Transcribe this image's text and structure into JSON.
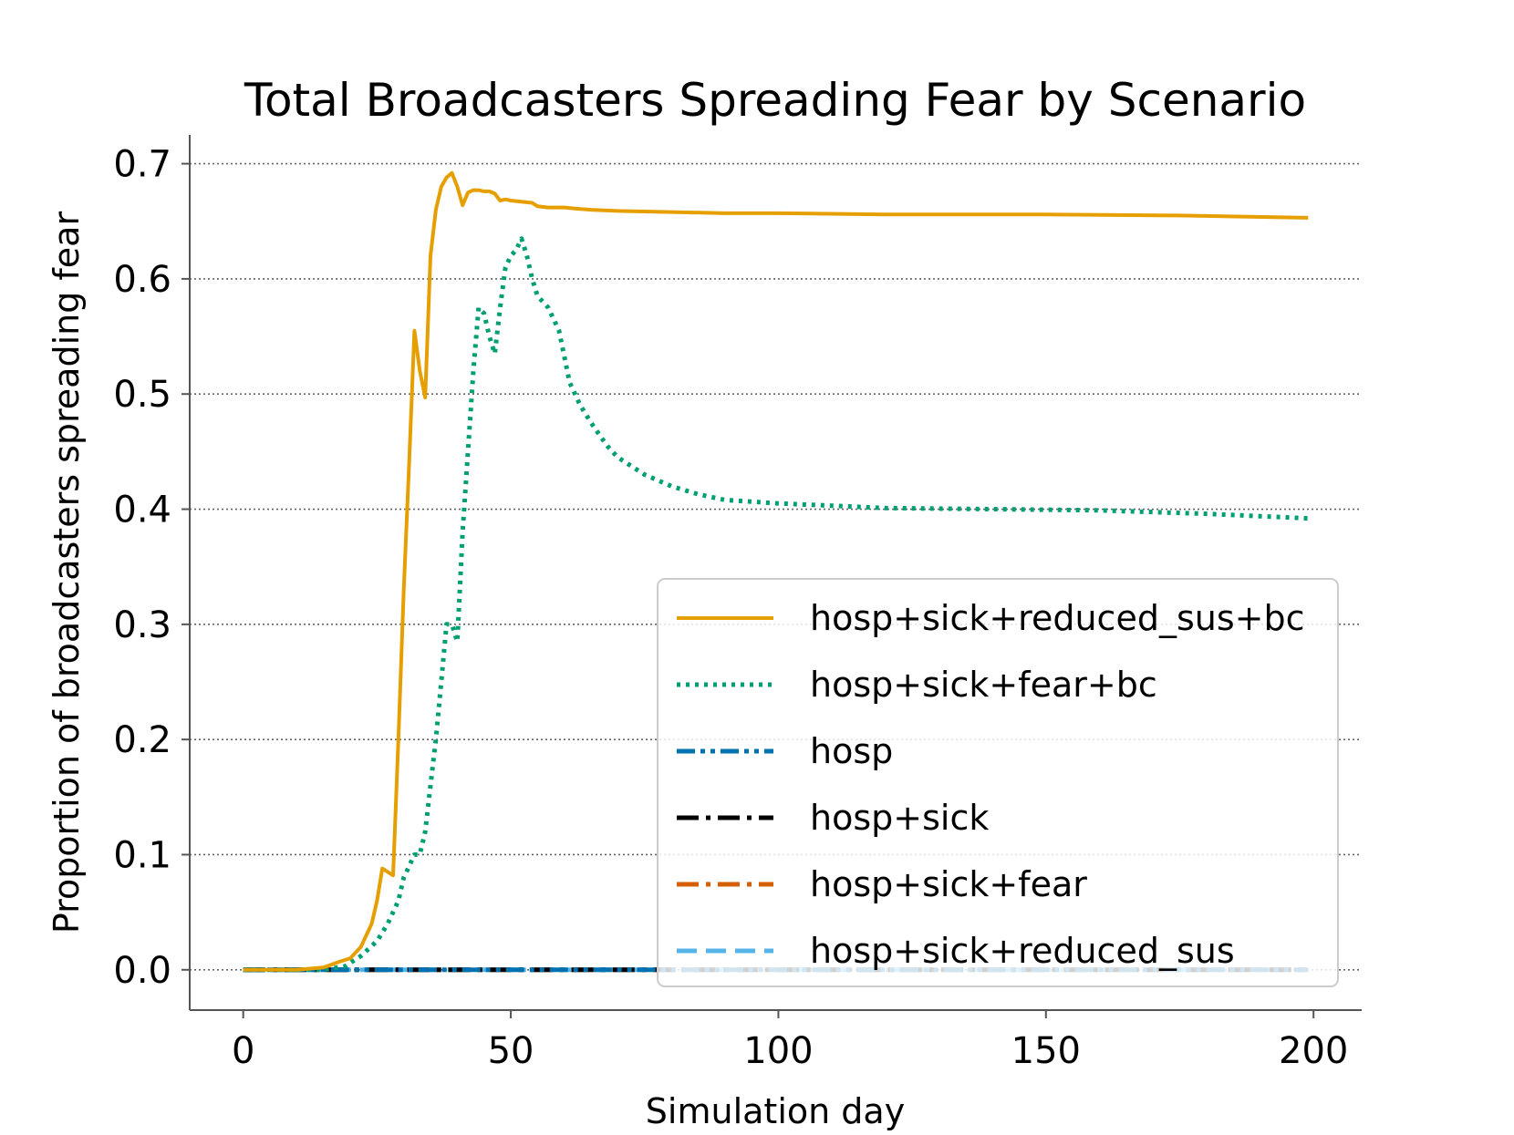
{
  "chart_data": {
    "type": "line",
    "title": "Total Broadcasters Spreading Fear by Scenario",
    "xlabel": "Simulation day",
    "ylabel": "Proportion of broadcasters spreading fear",
    "xlim": [
      -10,
      209
    ],
    "ylim": [
      -0.035,
      0.725
    ],
    "xticks": [
      0,
      50,
      100,
      150,
      200
    ],
    "yticks": [
      0.0,
      0.1,
      0.2,
      0.3,
      0.4,
      0.5,
      0.6,
      0.7
    ],
    "xtick_labels": [
      "0",
      "50",
      "100",
      "150",
      "200"
    ],
    "ytick_labels": [
      "0.0",
      "0.1",
      "0.2",
      "0.3",
      "0.4",
      "0.5",
      "0.6",
      "0.7"
    ],
    "grid": "horizontal dotted",
    "legend_position": "lower-right",
    "series": [
      {
        "name": "hosp+sick+reduced_sus+bc",
        "color": "#E69F00",
        "style": "solid",
        "x": [
          0,
          10,
          15,
          18,
          20,
          22,
          24,
          25,
          26,
          27,
          28,
          29,
          30,
          31,
          32,
          33,
          34,
          35,
          36,
          37,
          38,
          39,
          40,
          41,
          42,
          43,
          44,
          45,
          46,
          47,
          48,
          49,
          50,
          52,
          54,
          55,
          57,
          60,
          62,
          65,
          70,
          80,
          90,
          100,
          120,
          150,
          175,
          199
        ],
        "y": [
          0,
          0,
          0.002,
          0.007,
          0.01,
          0.02,
          0.04,
          0.06,
          0.088,
          0.085,
          0.082,
          0.2,
          0.33,
          0.44,
          0.555,
          0.52,
          0.497,
          0.62,
          0.66,
          0.68,
          0.688,
          0.692,
          0.68,
          0.664,
          0.675,
          0.677,
          0.677,
          0.676,
          0.676,
          0.674,
          0.668,
          0.669,
          0.668,
          0.667,
          0.666,
          0.663,
          0.662,
          0.662,
          0.661,
          0.66,
          0.659,
          0.658,
          0.657,
          0.657,
          0.656,
          0.656,
          0.655,
          0.653
        ]
      },
      {
        "name": "hosp+sick+fear+bc",
        "color": "#009E73",
        "style": "dotted",
        "x": [
          0,
          15,
          19,
          22,
          25,
          27,
          29,
          30,
          31,
          32,
          33,
          34,
          35,
          36,
          37,
          38,
          39,
          40,
          41,
          42,
          43,
          44,
          45,
          46,
          47,
          48,
          49,
          50,
          51,
          52,
          53,
          54,
          55,
          57,
          59,
          61,
          63,
          65,
          68,
          70,
          75,
          80,
          85,
          90,
          100,
          110,
          120,
          140,
          160,
          180,
          199
        ],
        "y": [
          0,
          0,
          0.003,
          0.012,
          0.025,
          0.04,
          0.06,
          0.08,
          0.09,
          0.1,
          0.1,
          0.12,
          0.16,
          0.2,
          0.25,
          0.3,
          0.3,
          0.285,
          0.38,
          0.45,
          0.52,
          0.575,
          0.57,
          0.55,
          0.535,
          0.575,
          0.61,
          0.62,
          0.625,
          0.635,
          0.62,
          0.6,
          0.585,
          0.575,
          0.555,
          0.51,
          0.49,
          0.475,
          0.455,
          0.445,
          0.43,
          0.42,
          0.413,
          0.408,
          0.405,
          0.403,
          0.401,
          0.4,
          0.399,
          0.396,
          0.392
        ]
      },
      {
        "name": "hosp",
        "color": "#0072B2",
        "style": "dashdotdot",
        "x": [
          0,
          199
        ],
        "y": [
          0,
          0
        ]
      },
      {
        "name": "hosp+sick",
        "color": "#000000",
        "style": "dashdot",
        "x": [
          0,
          199
        ],
        "y": [
          0,
          0
        ]
      },
      {
        "name": "hosp+sick+fear",
        "color": "#D55E00",
        "style": "dashdot",
        "x": [
          0,
          199
        ],
        "y": [
          0,
          0
        ]
      },
      {
        "name": "hosp+sick+reduced_sus",
        "color": "#56B4E9",
        "style": "dashed",
        "x": [
          0,
          199
        ],
        "y": [
          0,
          0
        ]
      }
    ]
  }
}
